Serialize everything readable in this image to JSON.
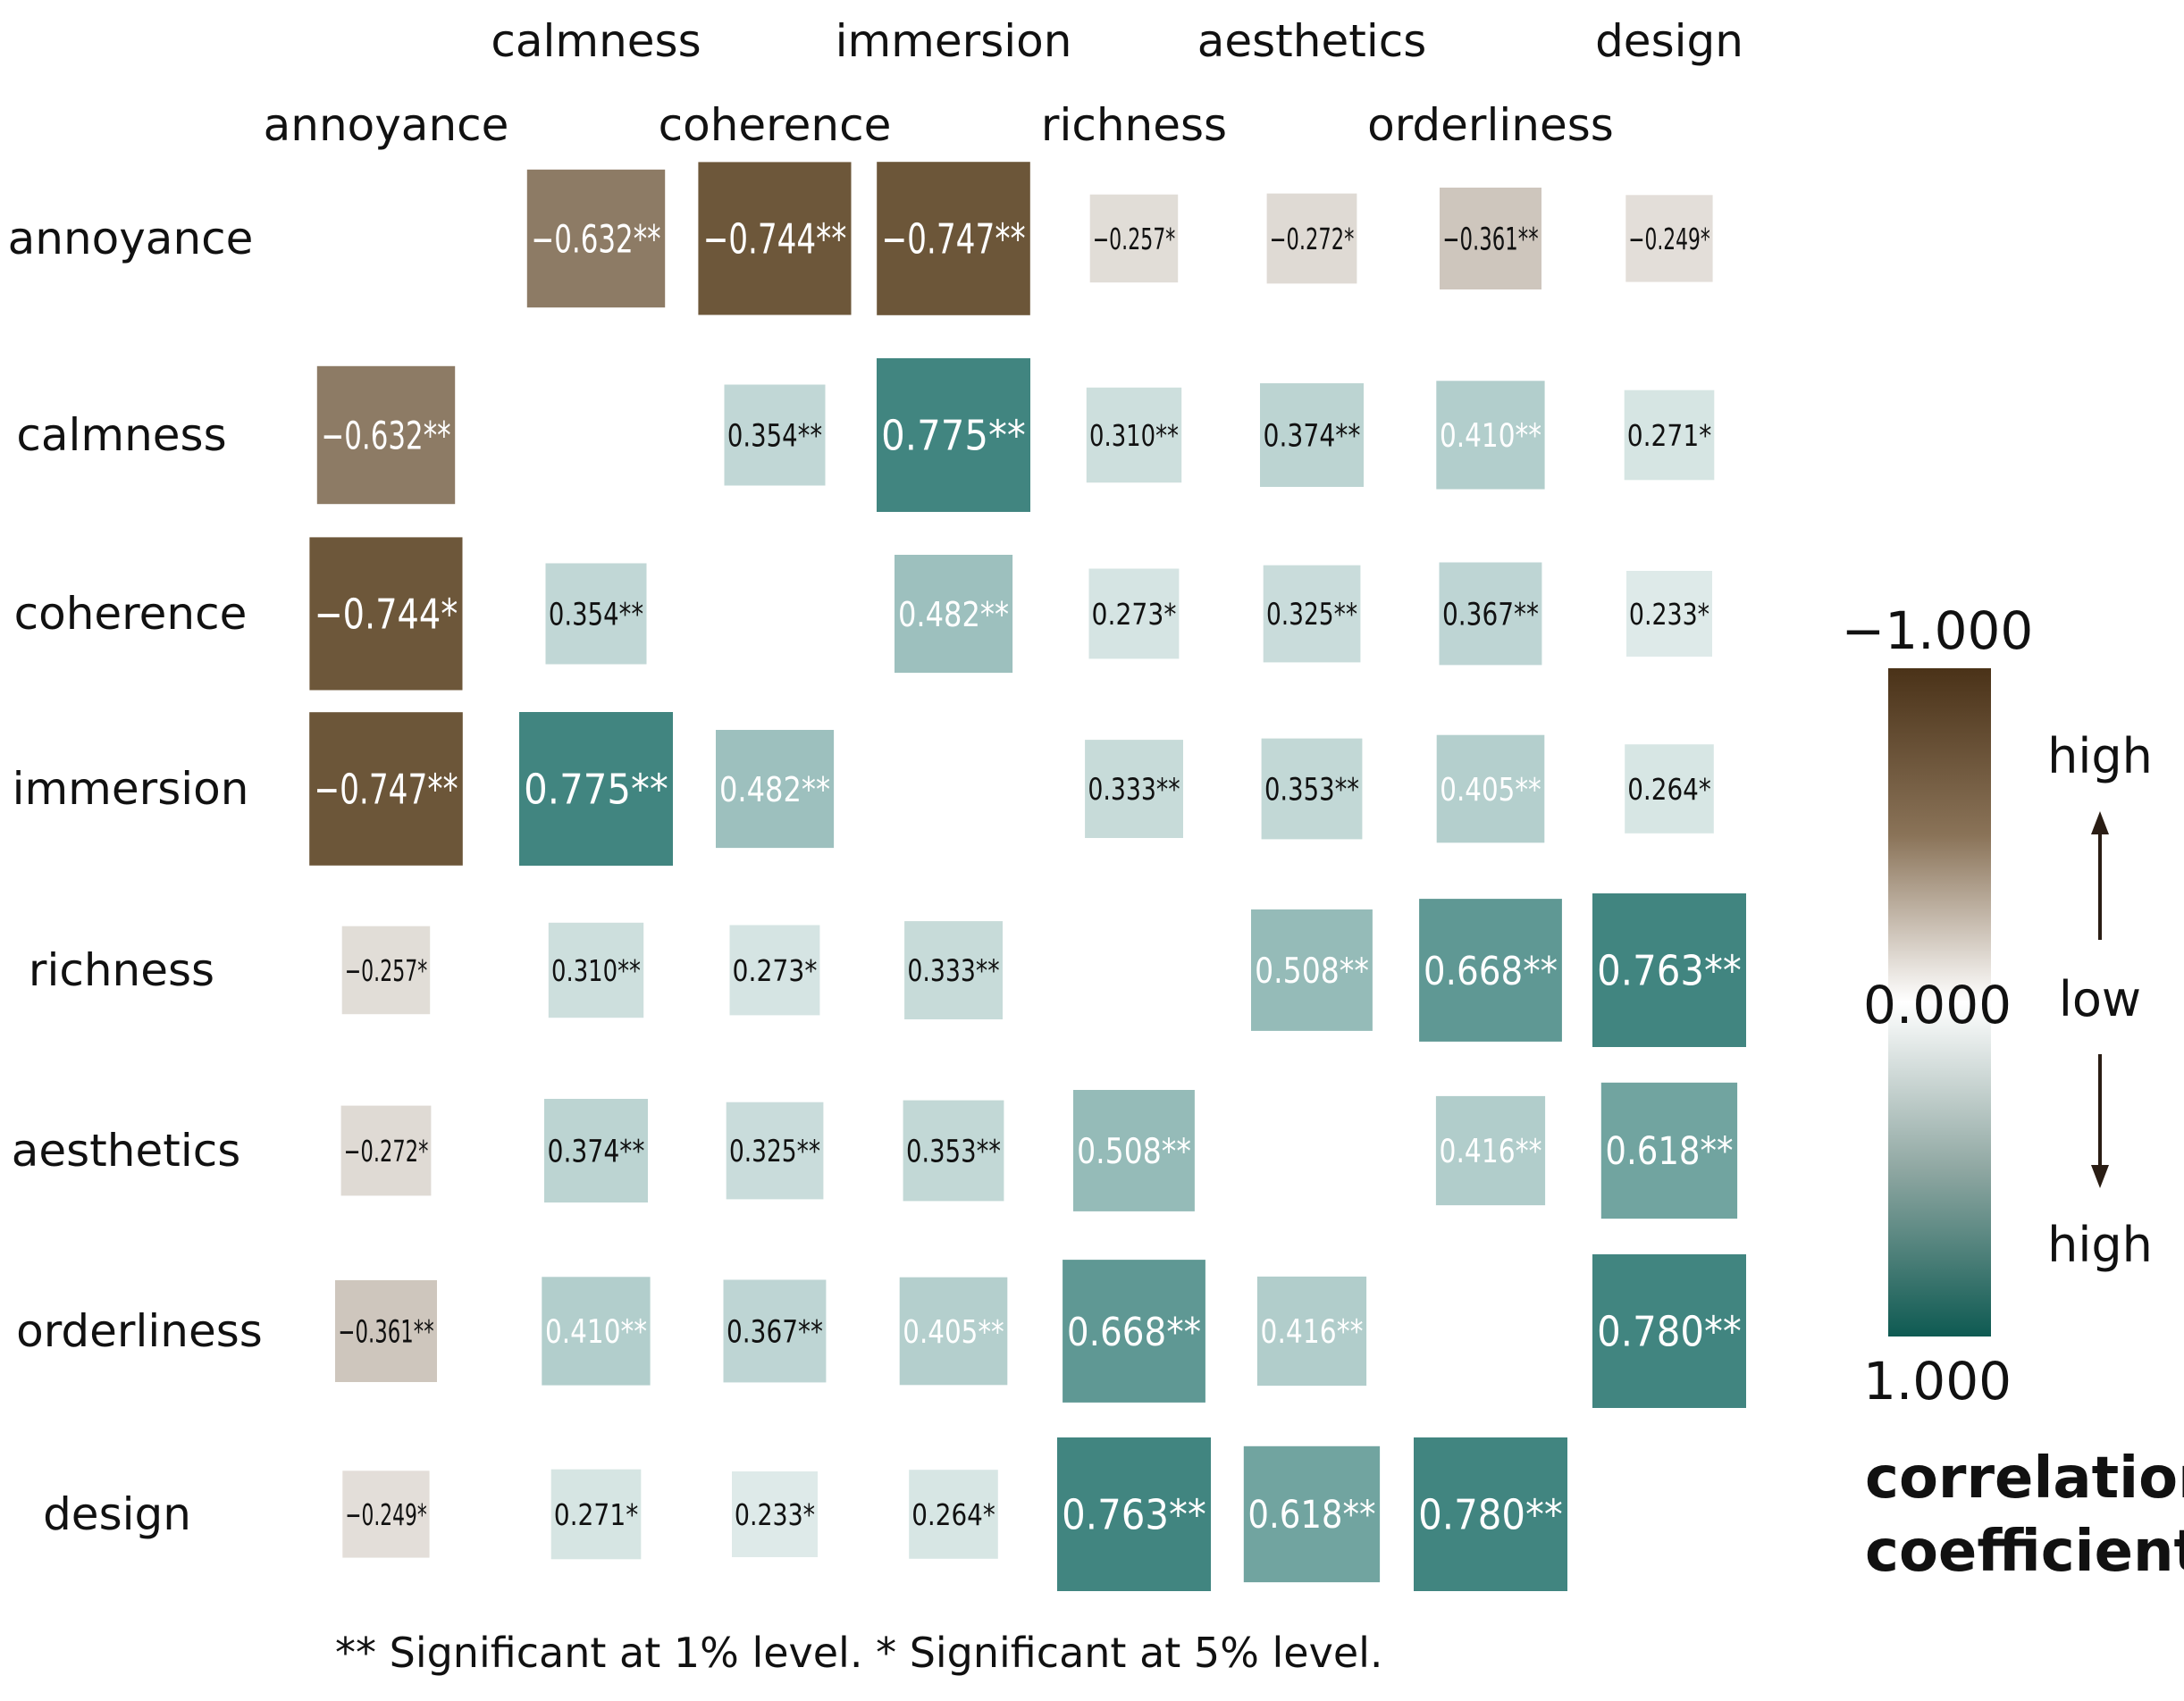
{
  "chart_data": {
    "type": "heatmap",
    "variables": [
      "annoyance",
      "calmness",
      "coherence",
      "immersion",
      "richness",
      "aesthetics",
      "orderliness",
      "design"
    ],
    "values": [
      [
        null,
        -0.632,
        -0.744,
        -0.747,
        -0.257,
        -0.272,
        -0.361,
        -0.249
      ],
      [
        -0.632,
        null,
        0.354,
        0.775,
        0.31,
        0.374,
        0.41,
        0.271
      ],
      [
        -0.744,
        0.354,
        null,
        0.482,
        0.273,
        0.325,
        0.367,
        0.233
      ],
      [
        -0.747,
        0.775,
        0.482,
        null,
        0.333,
        0.353,
        0.405,
        0.264
      ],
      [
        -0.257,
        0.31,
        0.273,
        0.333,
        null,
        0.508,
        0.668,
        0.763
      ],
      [
        -0.272,
        0.374,
        0.325,
        0.353,
        0.508,
        null,
        0.416,
        0.618
      ],
      [
        -0.361,
        0.41,
        0.367,
        0.405,
        0.668,
        0.416,
        null,
        0.78
      ],
      [
        -0.249,
        0.271,
        0.233,
        0.264,
        0.763,
        0.618,
        0.78,
        null
      ]
    ],
    "cell_labels": [
      [
        "",
        "−0.632**",
        "−0.744**",
        "−0.747**",
        "−0.257*",
        "−0.272*",
        "−0.361**",
        "−0.249*"
      ],
      [
        "−0.632**",
        "",
        "0.354**",
        "0.775**",
        "0.310**",
        "0.374**",
        "0.410**",
        "0.271*"
      ],
      [
        "−0.744*",
        "0.354**",
        "",
        "0.482**",
        "0.273*",
        "0.325**",
        "0.367**",
        "0.233*"
      ],
      [
        "−0.747**",
        "0.775**",
        "0.482**",
        "",
        "0.333**",
        "0.353**",
        "0.405**",
        "0.264*"
      ],
      [
        "−0.257*",
        "0.310**",
        "0.273*",
        "0.333**",
        "",
        "0.508**",
        "0.668**",
        "0.763**"
      ],
      [
        "−0.272*",
        "0.374**",
        "0.325**",
        "0.353**",
        "0.508**",
        "",
        "0.416**",
        "0.618**"
      ],
      [
        "−0.361**",
        "0.410**",
        "0.367**",
        "0.405**",
        "0.668**",
        "0.416**",
        "",
        "0.780**"
      ],
      [
        "−0.249*",
        "0.271*",
        "0.233*",
        "0.264*",
        "0.763**",
        "0.618**",
        "0.780**",
        ""
      ]
    ],
    "color_scale": {
      "title": "correlation coefficient",
      "title_lines": [
        "correlation",
        "coefficient"
      ],
      "tick_top": "−1.000",
      "tick_mid": "0.000",
      "tick_bottom": "1.000",
      "label_high_top": "high",
      "label_low": "low",
      "label_high_bottom": "high",
      "negative_color": "#4a3218",
      "zero_color": "#ffffff",
      "positive_color": "#0e5a52",
      "cell_negative_color": "#6b5538",
      "cell_positive_color": "#418580"
    },
    "footnote": "** Significant at 1% level.  * Significant at 5% level."
  }
}
